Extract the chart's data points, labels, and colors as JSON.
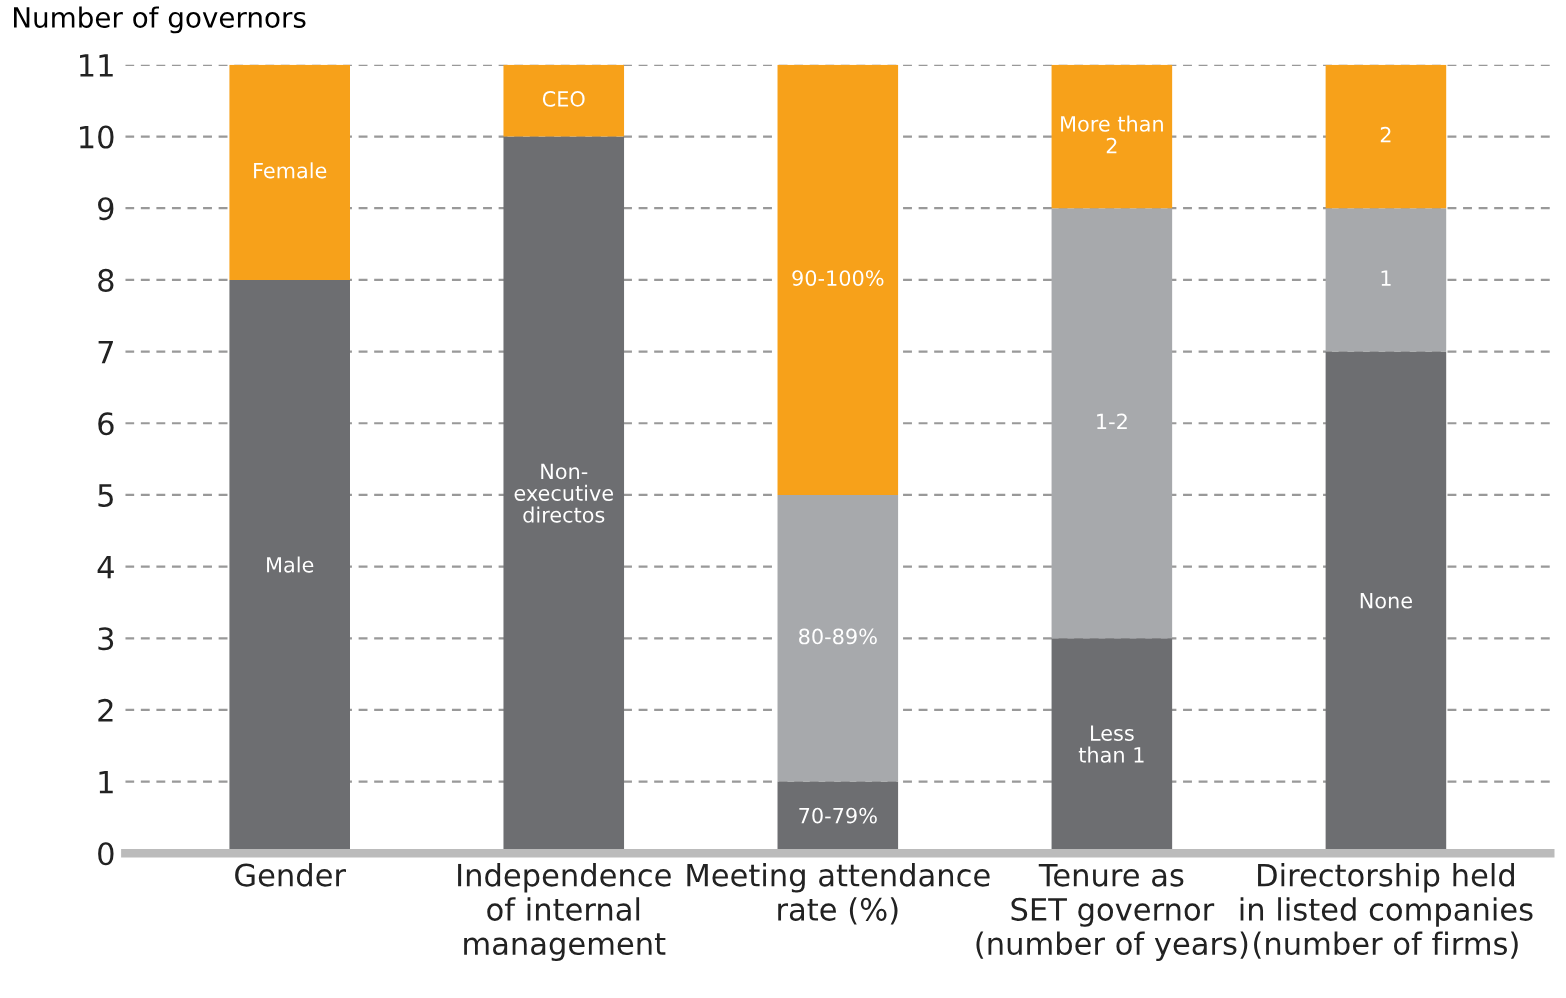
{
  "chart_data": {
    "type": "bar",
    "stacked": true,
    "ylabel": "Number of governors",
    "categories": [
      "Gender",
      "Independence\nof internal\nmanagement",
      "Meeting attendance\nrate (%)",
      "Tenure as\nSET governor\n(number of years)",
      "Directorship held\nin listed companies\n(number of firms)"
    ],
    "series": [
      {
        "color": "#6d6e71",
        "values": [
          8,
          10,
          1,
          3,
          7
        ]
      },
      {
        "color": "#a7a9ac",
        "values": [
          null,
          null,
          4,
          6,
          2
        ]
      },
      {
        "color": "#f7a11a",
        "values": [
          3,
          1,
          6,
          2,
          2
        ]
      }
    ],
    "ylim": [
      0,
      11
    ],
    "yticks": [
      0,
      1,
      2,
      3,
      4,
      5,
      6,
      7,
      8,
      9,
      10,
      11
    ],
    "grid": "y",
    "legend": false,
    "annotations": [
      "Male",
      "Female",
      "Non-\nexecutive\ndirectos",
      "CEO",
      "70-79%",
      "80-89%",
      "90-100%",
      "Less\nthan 1",
      "1-2",
      "More than\n2",
      "None",
      "1",
      "2"
    ]
  }
}
